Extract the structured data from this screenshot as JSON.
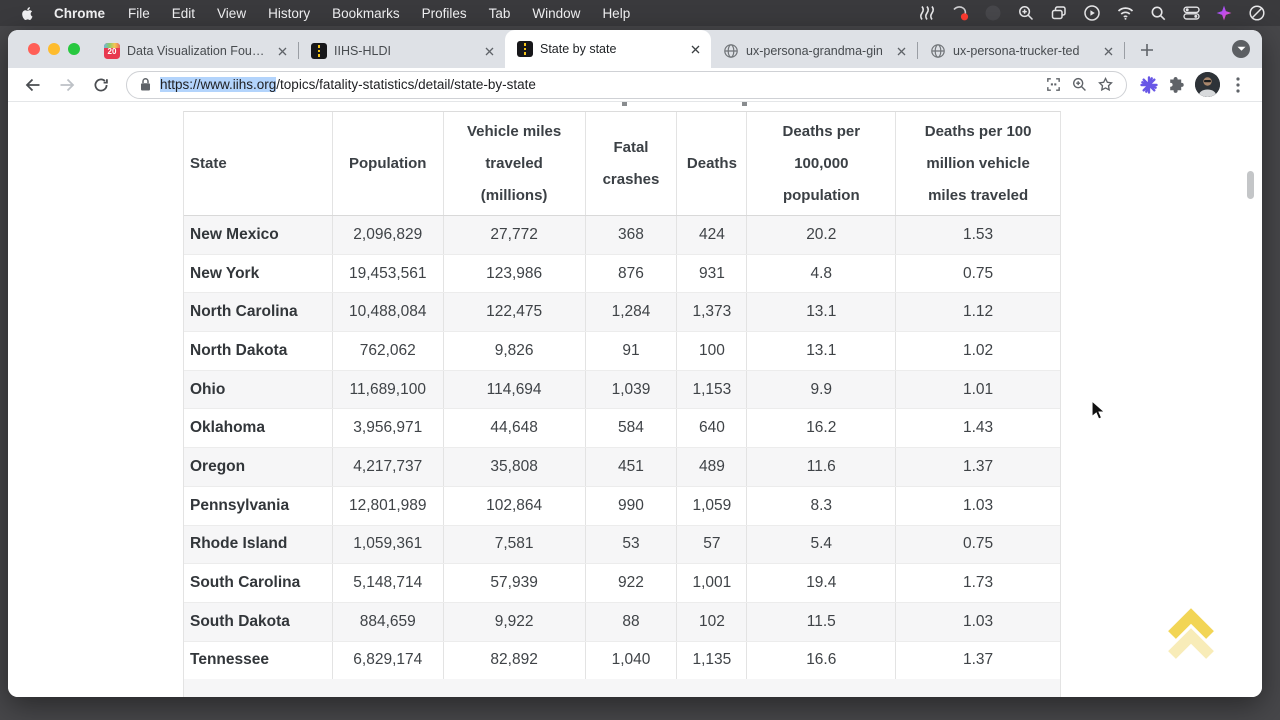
{
  "menu_bar": {
    "app_name": "Chrome",
    "items": [
      "File",
      "Edit",
      "View",
      "History",
      "Bookmarks",
      "Profiles",
      "Tab",
      "Window",
      "Help"
    ]
  },
  "tab_strip": {
    "tabs": [
      {
        "title": "Data Visualization Founda",
        "favicon": "calendar-20-icon",
        "active": false
      },
      {
        "title": "IIHS-HLDI",
        "favicon": "iihs-road-icon",
        "active": false
      },
      {
        "title": "State by state",
        "favicon": "iihs-road-icon",
        "active": true
      },
      {
        "title": "ux-persona-grandma-gin",
        "favicon": "globe-icon",
        "active": false
      },
      {
        "title": "ux-persona-trucker-ted",
        "favicon": "globe-icon",
        "active": false
      }
    ],
    "favicon_badge_number": "20"
  },
  "toolbar": {
    "url_selected": "https://www.iihs.org",
    "url_rest": "/topics/fatality-statistics/detail/state-by-state"
  },
  "page": {
    "table": {
      "headers": [
        "State",
        "Population",
        "Vehicle miles traveled (millions)",
        "Fatal crashes",
        "Deaths",
        "Deaths per 100,000 population",
        "Deaths per 100 million vehicle miles traveled"
      ],
      "rows": [
        [
          "New Mexico",
          "2,096,829",
          "27,772",
          "368",
          "424",
          "20.2",
          "1.53"
        ],
        [
          "New York",
          "19,453,561",
          "123,986",
          "876",
          "931",
          "4.8",
          "0.75"
        ],
        [
          "North Carolina",
          "10,488,084",
          "122,475",
          "1,284",
          "1,373",
          "13.1",
          "1.12"
        ],
        [
          "North Dakota",
          "762,062",
          "9,826",
          "91",
          "100",
          "13.1",
          "1.02"
        ],
        [
          "Ohio",
          "11,689,100",
          "114,694",
          "1,039",
          "1,153",
          "9.9",
          "1.01"
        ],
        [
          "Oklahoma",
          "3,956,971",
          "44,648",
          "584",
          "640",
          "16.2",
          "1.43"
        ],
        [
          "Oregon",
          "4,217,737",
          "35,808",
          "451",
          "489",
          "11.6",
          "1.37"
        ],
        [
          "Pennsylvania",
          "12,801,989",
          "102,864",
          "990",
          "1,059",
          "8.3",
          "1.03"
        ],
        [
          "Rhode Island",
          "1,059,361",
          "7,581",
          "53",
          "57",
          "5.4",
          "0.75"
        ],
        [
          "South Carolina",
          "5,148,714",
          "57,939",
          "922",
          "1,001",
          "19.4",
          "1.73"
        ],
        [
          "South Dakota",
          "884,659",
          "9,922",
          "88",
          "102",
          "11.5",
          "1.03"
        ],
        [
          "Tennessee",
          "6,829,174",
          "82,892",
          "1,040",
          "1,135",
          "16.6",
          "1.37"
        ]
      ]
    }
  },
  "icons": {
    "menubar_right": [
      "waves-icon",
      "screen-record-icon",
      "dimmed-app-icon",
      "zoom-icon",
      "window-switcher-icon",
      "play-circle-icon",
      "wifi-icon",
      "spotlight-search-icon",
      "control-center-icon",
      "sparkle-extension-icon",
      "do-not-disturb-icon"
    ],
    "toolbar": [
      "back-icon",
      "forward-icon",
      "reload-icon",
      "lock-icon",
      "scan-icon",
      "zoom-in-icon",
      "bookmark-star-icon",
      "purple-burst-extension-icon",
      "puzzle-extensions-icon",
      "profile-avatar",
      "kebab-menu-icon"
    ],
    "page": [
      "scroll-to-top-chevrons-icon"
    ]
  },
  "colors": {
    "selection_highlight": "#b3d4fc",
    "tabstrip_bg": "#dee1e6",
    "menubar_bg": "#3a3a3d",
    "row_shade": "#f6f6f7",
    "scroll_top_gold": "#f0cf3e",
    "favicon_red": "#e8384f",
    "iihs_yellow": "#f5c518",
    "traffic_red": "#ff5f57",
    "traffic_yellow": "#febc2e",
    "traffic_green": "#28c840"
  }
}
